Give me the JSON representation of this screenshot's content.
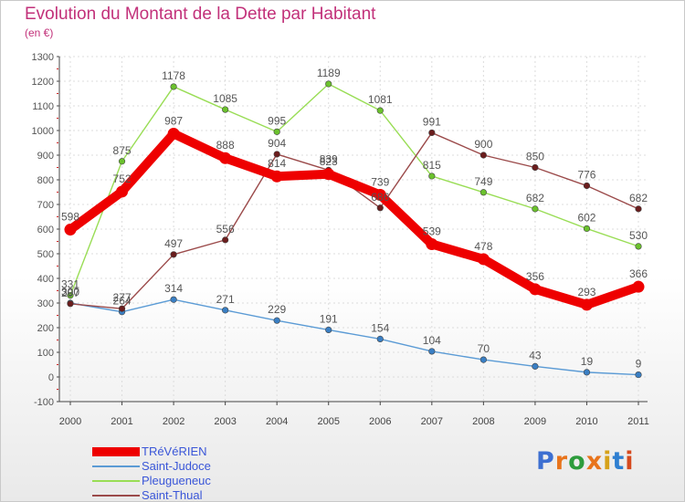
{
  "title": "Evolution du Montant de la Dette par Habitant",
  "subtitle": "(en €)",
  "brand": {
    "text": "Proxiti",
    "colors": [
      "#3d6fd1",
      "#e8741c",
      "#2d9c3c",
      "#e8741c",
      "#d6a21b",
      "#2f7fd1",
      "#d64a1f"
    ]
  },
  "chart_data": {
    "type": "line",
    "x": [
      "2000",
      "2001",
      "2002",
      "2003",
      "2004",
      "2005",
      "2006",
      "2007",
      "2008",
      "2009",
      "2010",
      "2011"
    ],
    "ylim": [
      -100,
      1300
    ],
    "yticks": [
      "-100",
      "0",
      "100",
      "200",
      "300",
      "400",
      "500",
      "600",
      "700",
      "800",
      "900",
      "1000",
      "1100",
      "1200",
      "1300"
    ],
    "grid": true,
    "legend_position": "bottom-left",
    "series": [
      {
        "name": "Saint-Judoce",
        "color": "#5b9bd5",
        "marker": "#3a7fc4",
        "values": [
          300,
          264,
          314,
          271,
          229,
          191,
          154,
          104,
          70,
          43,
          19,
          9
        ],
        "labels": [
          "300",
          "264",
          "314",
          "271",
          "229",
          "191",
          "154",
          "104",
          "70",
          "43",
          "19",
          "9"
        ]
      },
      {
        "name": "Pleugueneuc",
        "color": "#99dd55",
        "marker": "#6bc22d",
        "values": [
          331,
          875,
          1178,
          1085,
          995,
          1189,
          1081,
          815,
          749,
          682,
          602,
          530
        ],
        "labels": [
          "331",
          "875",
          "1178",
          "1085",
          "995",
          "1189",
          "1081",
          "815",
          "749",
          "682",
          "602",
          "530"
        ]
      },
      {
        "name": "Saint-Thual",
        "color": "#9b4a4a",
        "marker": "#6b1d1d",
        "values": [
          297,
          277,
          497,
          556,
          904,
          839,
          686,
          991,
          900,
          850,
          776,
          682
        ],
        "labels": [
          "297",
          "277",
          "497",
          "556",
          "904",
          "839",
          "686",
          "991",
          "900",
          "850",
          "776",
          "682"
        ]
      },
      {
        "name": "TRéVéRIEN",
        "color": "#ee0000",
        "marker": "#ee0000",
        "values": [
          598,
          752,
          987,
          888,
          814,
          823,
          739,
          539,
          478,
          356,
          293,
          366
        ],
        "labels": [
          "598",
          "752",
          "987",
          "888",
          "814",
          "823",
          "739",
          "539",
          "478",
          "356",
          "293",
          "366"
        ]
      }
    ],
    "legend_order": [
      "TRéVéRIEN",
      "Saint-Judoce",
      "Pleugueneuc",
      "Saint-Thual"
    ]
  }
}
